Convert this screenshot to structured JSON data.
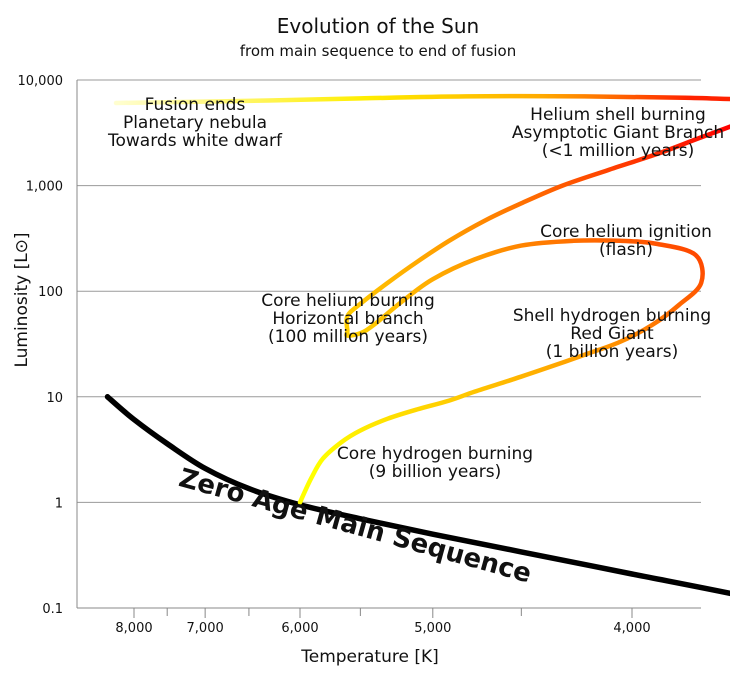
{
  "chart_data": {
    "type": "line",
    "title": "Evolution of the Sun",
    "subtitle": "from main sequence to end of fusion",
    "xlabel": "Temperature [K]",
    "ylabel": "Luminosity [L⊙]",
    "x_scale": "reciprocal",
    "y_scale": "log",
    "xlim": [
      8500,
      3400
    ],
    "ylim": [
      0.1,
      10000
    ],
    "grid": "horizontal",
    "x_ticks": [
      {
        "value": 8000,
        "label": "8,000"
      },
      {
        "value": 7000,
        "label": "7,000"
      },
      {
        "value": 6000,
        "label": "6,000"
      },
      {
        "value": 5000,
        "label": "5,000"
      },
      {
        "value": 4000,
        "label": "4,000"
      }
    ],
    "x_minor_ticks": [
      7500,
      6500,
      5500,
      4500,
      3500
    ],
    "y_ticks": [
      {
        "value": 0.1,
        "label": "0.1"
      },
      {
        "value": 1,
        "label": "1"
      },
      {
        "value": 10,
        "label": "10"
      },
      {
        "value": 100,
        "label": "100"
      },
      {
        "value": 1000,
        "label": "1,000"
      },
      {
        "value": 10000,
        "label": "10,000"
      }
    ],
    "zams": {
      "label": "Zero Age Main Sequence",
      "color": "#000000",
      "x": [
        8450,
        8000,
        7500,
        7000,
        6500,
        6000,
        5500,
        5000,
        4500,
        4000,
        3600,
        3450
      ],
      "y": [
        10,
        6.1,
        3.6,
        2.1,
        1.35,
        0.95,
        0.7,
        0.5,
        0.34,
        0.21,
        0.13,
        0.1
      ]
    },
    "sun_track": {
      "color_start": "#ffff00",
      "color_mid": "#ff9900",
      "color_end": "#ff0000",
      "x": [
        6000,
        5900,
        5800,
        5650,
        5500,
        5300,
        5100,
        4900,
        4750,
        4550,
        4400,
        4200,
        4050,
        3920,
        3820,
        3740,
        3760,
        3900,
        4050,
        4250,
        4500,
        4750,
        5000,
        5200,
        5400,
        5500,
        5600,
        5600,
        5600,
        5500,
        5300,
        5100,
        4900,
        4700,
        4500,
        4300,
        4100,
        3900,
        3750,
        3600,
        3450,
        3430,
        3550,
        3800,
        4200,
        4800,
        5500,
        6300,
        7200,
        8000,
        8300
      ],
      "y": [
        1.0,
        1.7,
        2.6,
        3.7,
        4.8,
        6.2,
        7.6,
        9.2,
        11.2,
        14.5,
        18,
        25,
        33,
        48,
        74,
        120,
        220,
        280,
        300,
        300,
        270,
        200,
        130,
        80,
        48,
        40,
        38,
        42,
        58,
        76,
        120,
        190,
        300,
        460,
        680,
        1000,
        1400,
        2000,
        2800,
        4000,
        6000,
        7600,
        6600,
        6800,
        7000,
        7000,
        6700,
        6400,
        6200,
        6100,
        6050
      ]
    },
    "annotations": [
      {
        "lines": [
          "Fusion ends",
          "Planetary nebula",
          "Towards white dwarf"
        ]
      },
      {
        "lines": [
          "Helium shell burning",
          "Asymptotic Giant Branch",
          "(<1 million years)"
        ]
      },
      {
        "lines": [
          "Core helium ignition",
          "(flash)"
        ]
      },
      {
        "lines": [
          "Core helium burning",
          "Horizontal branch",
          "(100 million years)"
        ]
      },
      {
        "lines": [
          "Shell hydrogen burning",
          "Red Giant",
          "(1 billion years)"
        ]
      },
      {
        "lines": [
          "Core hydrogen burning",
          "(9 billion years)"
        ]
      }
    ]
  }
}
